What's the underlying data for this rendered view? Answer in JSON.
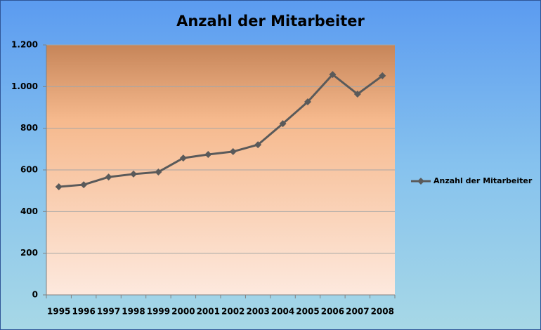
{
  "chart_data": {
    "type": "line",
    "title": "Anzahl der Mitarbeiter",
    "categories": [
      "1995",
      "1996",
      "1997",
      "1998",
      "1999",
      "2000",
      "2001",
      "2002",
      "2003",
      "2004",
      "2005",
      "2006",
      "2007",
      "2008"
    ],
    "series": [
      {
        "name": "Anzahl der Mitarbeiter",
        "color": "#5a5a5a",
        "values": [
          519,
          529,
          566,
          580,
          590,
          657,
          674,
          688,
          721,
          822,
          927,
          1058,
          964,
          1052
        ]
      }
    ],
    "ylim": [
      0,
      1200
    ],
    "yticks": [
      0,
      200,
      400,
      600,
      800,
      {
        "value": 1000,
        "label": "1.000"
      },
      {
        "value": 1200,
        "label": "1.200"
      }
    ],
    "grid": true,
    "legend": "right"
  }
}
